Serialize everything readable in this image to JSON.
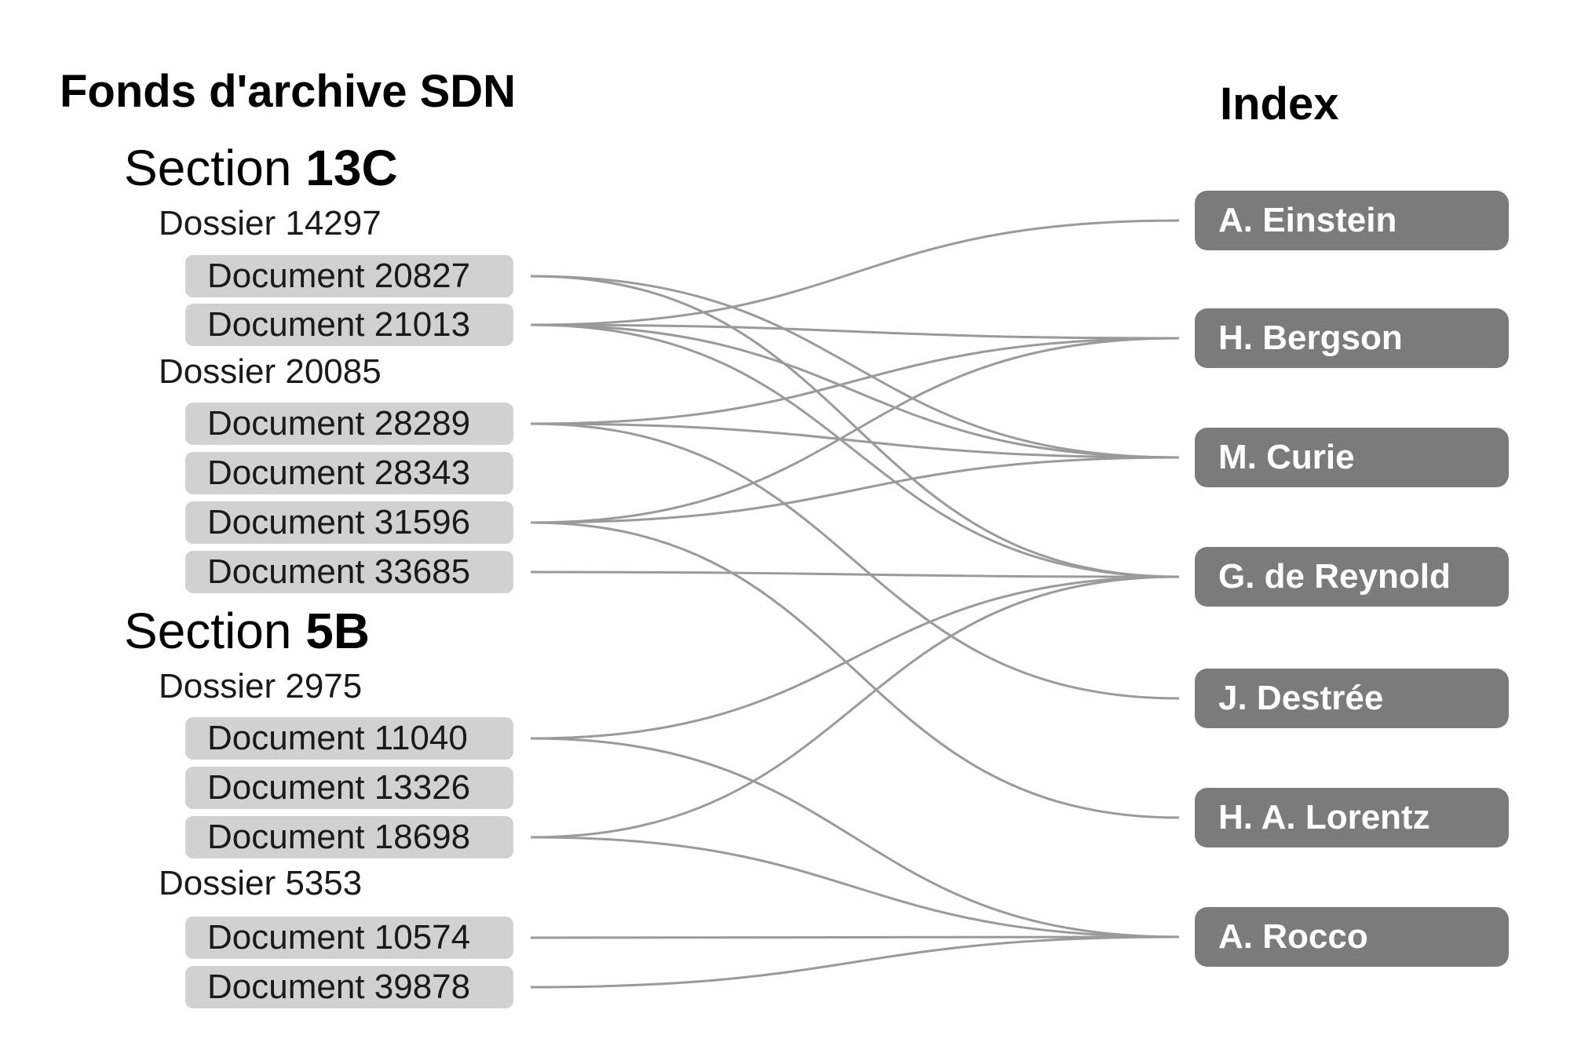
{
  "archive": {
    "title": "Fonds d'archive SDN",
    "sections": [
      {
        "prefix": "Section",
        "code": "13C",
        "dossiers": [
          {
            "label": "Dossier 14297",
            "documents": [
              {
                "id": "20827",
                "label": "Document 20827"
              },
              {
                "id": "21013",
                "label": "Document 21013"
              }
            ]
          },
          {
            "label": "Dossier 20085",
            "documents": [
              {
                "id": "28289",
                "label": "Document 28289"
              },
              {
                "id": "28343",
                "label": "Document 28343"
              },
              {
                "id": "31596",
                "label": "Document 31596"
              },
              {
                "id": "33685",
                "label": "Document 33685"
              }
            ]
          }
        ]
      },
      {
        "prefix": "Section",
        "code": "5B",
        "dossiers": [
          {
            "label": "Dossier 2975",
            "documents": [
              {
                "id": "11040",
                "label": "Document 11040"
              },
              {
                "id": "13326",
                "label": "Document 13326"
              },
              {
                "id": "18698",
                "label": "Document 18698"
              }
            ]
          },
          {
            "label": "Dossier 5353",
            "documents": [
              {
                "id": "10574",
                "label": "Document 10574"
              },
              {
                "id": "39878",
                "label": "Document 39878"
              }
            ]
          }
        ]
      }
    ]
  },
  "index": {
    "title": "Index",
    "people": [
      {
        "id": "einstein",
        "label": "A. Einstein"
      },
      {
        "id": "bergson",
        "label": "H. Bergson"
      },
      {
        "id": "curie",
        "label": "M. Curie"
      },
      {
        "id": "reynold",
        "label": "G. de Reynold"
      },
      {
        "id": "destree",
        "label": "J. Destrée"
      },
      {
        "id": "lorentz",
        "label": "H. A. Lorentz"
      },
      {
        "id": "rocco",
        "label": "A. Rocco"
      }
    ]
  },
  "links": [
    {
      "from": "20827",
      "to": "curie"
    },
    {
      "from": "20827",
      "to": "reynold"
    },
    {
      "from": "21013",
      "to": "einstein"
    },
    {
      "from": "21013",
      "to": "bergson"
    },
    {
      "from": "21013",
      "to": "curie"
    },
    {
      "from": "21013",
      "to": "reynold"
    },
    {
      "from": "28289",
      "to": "bergson"
    },
    {
      "from": "28289",
      "to": "curie"
    },
    {
      "from": "28289",
      "to": "destree"
    },
    {
      "from": "31596",
      "to": "bergson"
    },
    {
      "from": "31596",
      "to": "curie"
    },
    {
      "from": "31596",
      "to": "lorentz"
    },
    {
      "from": "33685",
      "to": "reynold"
    },
    {
      "from": "11040",
      "to": "reynold"
    },
    {
      "from": "11040",
      "to": "rocco"
    },
    {
      "from": "18698",
      "to": "reynold"
    },
    {
      "from": "18698",
      "to": "rocco"
    },
    {
      "from": "10574",
      "to": "rocco"
    },
    {
      "from": "39878",
      "to": "rocco"
    }
  ],
  "colors": {
    "link": "#9a9a9a",
    "document_box": "#d1d1d1",
    "person_box": "#7b7b7b",
    "person_text": "#ffffff"
  }
}
